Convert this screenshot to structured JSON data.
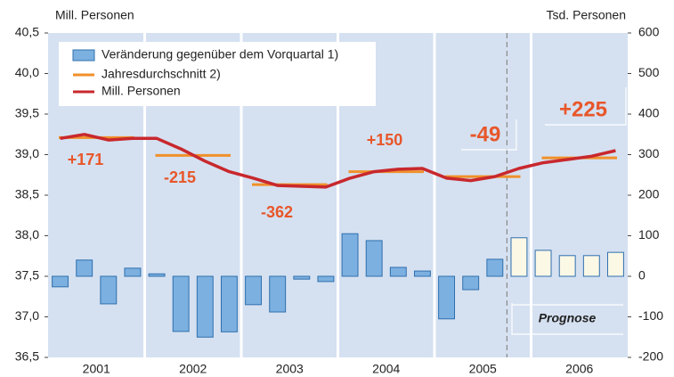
{
  "chart_data": {
    "type": "bar-line",
    "y_label": "Mill. Personen",
    "y2_label": "Tsd. Personen",
    "years": [
      "2001",
      "2002",
      "2003",
      "2004",
      "2005",
      "2006"
    ],
    "ylim": [
      36.5,
      40.5
    ],
    "yticks": [
      {
        "value": 36.5,
        "label": "36,5"
      },
      {
        "value": 37,
        "label": "37,0"
      },
      {
        "value": 37.5,
        "label": "37,5"
      },
      {
        "value": 38,
        "label": "38,0"
      },
      {
        "value": 38.5,
        "label": "38,5"
      },
      {
        "value": 39,
        "label": "39,0"
      },
      {
        "value": 39.5,
        "label": "39,5"
      },
      {
        "value": 40,
        "label": "40,0"
      },
      {
        "value": 40.5,
        "label": "40,5"
      }
    ],
    "y2lim": [
      -200,
      600
    ],
    "y2ticks": [
      -200,
      -100,
      0,
      100,
      200,
      300,
      400,
      500,
      600
    ],
    "grid": false,
    "background": "#d5e1f1",
    "series": [
      {
        "name": "Veränderung gegenüber dem Vorquartal 1)",
        "type": "bar",
        "axis": "y2",
        "color": "#7cb0e0",
        "values": [
          -26,
          40,
          -68,
          20,
          6,
          -136,
          -150,
          -137,
          -70,
          -88,
          -7,
          -13,
          105,
          88,
          22,
          13,
          -105,
          -33,
          42,
          95,
          64,
          51,
          51,
          59
        ],
        "bar_colors": [
          "#7cb0e0",
          "#7cb0e0",
          "#7cb0e0",
          "#7cb0e0",
          "#7cb0e0",
          "#7cb0e0",
          "#7cb0e0",
          "#7cb0e0",
          "#7cb0e0",
          "#7cb0e0",
          "#7cb0e0",
          "#7cb0e0",
          "#7cb0e0",
          "#7cb0e0",
          "#7cb0e0",
          "#7cb0e0",
          "#7cb0e0",
          "#7cb0e0",
          "#7cb0e0",
          "#fbf8e6",
          "#fbf8e6",
          "#fbf8e6",
          "#fbf8e6",
          "#fbf8e6"
        ]
      },
      {
        "name": "Jahresdurchschnitt 2)",
        "type": "year-average",
        "color": "#f0902a",
        "values": [
          39.21,
          38.99,
          38.63,
          38.79,
          38.73,
          38.96
        ]
      },
      {
        "name": "Mill. Personen",
        "type": "line",
        "color": "#c8282d",
        "values": [
          39.2,
          39.25,
          39.18,
          39.2,
          39.2,
          39.07,
          38.92,
          38.79,
          38.71,
          38.62,
          38.61,
          38.6,
          38.71,
          38.79,
          38.82,
          38.83,
          38.71,
          38.68,
          38.73,
          38.83,
          38.9,
          38.94,
          38.98,
          39.05
        ]
      }
    ],
    "annotations": [
      "+171",
      "-215",
      "-362",
      "+150",
      "-49",
      "+225"
    ],
    "forecast_label": "Prognose"
  }
}
